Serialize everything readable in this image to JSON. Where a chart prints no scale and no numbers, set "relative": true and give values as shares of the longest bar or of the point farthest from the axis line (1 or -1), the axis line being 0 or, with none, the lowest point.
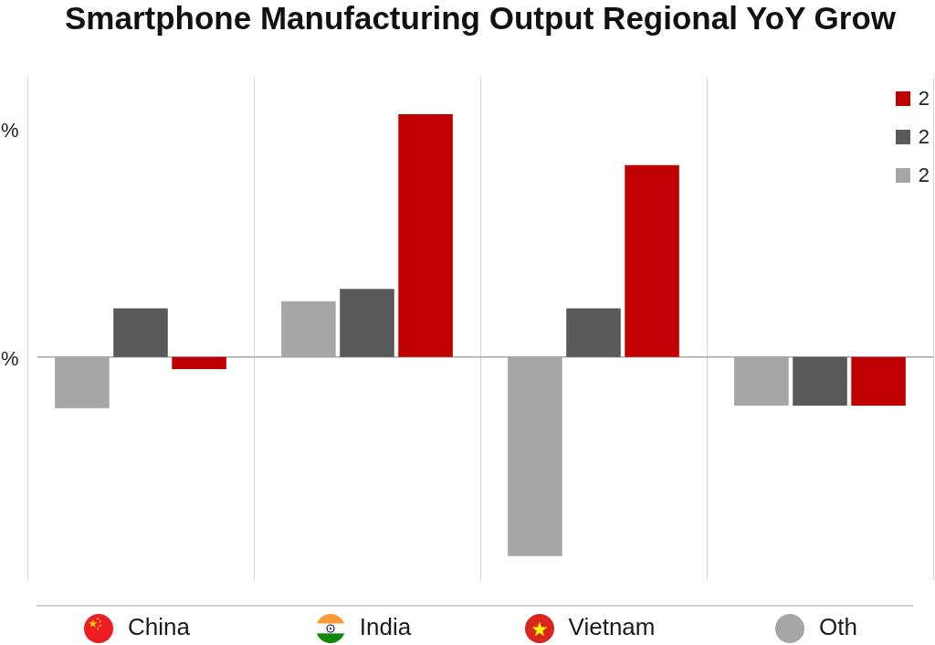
{
  "chart_data": {
    "type": "bar",
    "title": "Smartphone Manufacturing Output Regional YoY Grow",
    "categories": [
      "China",
      "India",
      "Vietnam",
      "Oth"
    ],
    "series": [
      {
        "name": "2",
        "color": "#a6a6a6",
        "values": [
          -0.21,
          0.23,
          -0.82,
          -0.2
        ]
      },
      {
        "name": "2",
        "color": "#595959",
        "values": [
          0.2,
          0.28,
          0.2,
          -0.2
        ]
      },
      {
        "name": "2",
        "color": "#c00000",
        "values": [
          -0.05,
          1,
          0.79,
          -0.2
        ]
      }
    ],
    "relative": true,
    "annotations": [
      "%",
      "%"
    ],
    "grid": "x",
    "legend": "top right"
  }
}
